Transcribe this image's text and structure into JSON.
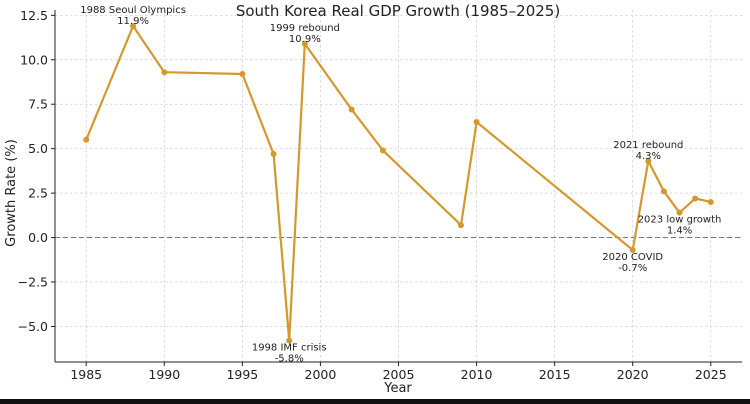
{
  "chart_data": {
    "type": "line",
    "title": "South Korea Real GDP Growth (1985–2025)",
    "xlabel": "Year",
    "ylabel": "Growth Rate (%)",
    "xlim": [
      1983,
      2027
    ],
    "ylim": [
      -7,
      12.8
    ],
    "xticks": [
      1985,
      1990,
      1995,
      2000,
      2005,
      2010,
      2015,
      2020,
      2025
    ],
    "yticks": [
      -5.0,
      -2.5,
      0.0,
      2.5,
      5.0,
      7.5,
      10.0,
      12.5
    ],
    "ytick_labels": [
      "−5.0",
      "−2.5",
      "0.0",
      "2.5",
      "5.0",
      "7.5",
      "10.0",
      "12.5"
    ],
    "grid": true,
    "zero_line": true,
    "series": [
      {
        "name": "Real GDP Growth",
        "color": "#D4982E",
        "x": [
          1985,
          1988,
          1990,
          1995,
          1997,
          1998,
          1999,
          2002,
          2004,
          2009,
          2010,
          2020,
          2021,
          2022,
          2023,
          2024,
          2025
        ],
        "y": [
          5.5,
          11.9,
          9.3,
          9.2,
          4.7,
          -5.8,
          10.9,
          7.2,
          4.9,
          0.7,
          6.5,
          -0.7,
          4.3,
          2.6,
          1.4,
          2.2,
          2.0
        ]
      }
    ],
    "annotations": [
      {
        "x": 1988,
        "y": 11.9,
        "label": "1988 Seoul Olympics",
        "value": "11.9%",
        "position": "above"
      },
      {
        "x": 1999,
        "y": 10.9,
        "label": "1999 rebound",
        "value": "10.9%",
        "position": "above"
      },
      {
        "x": 1998,
        "y": -5.8,
        "label": "1998 IMF crisis",
        "value": "-5.8%",
        "position": "below"
      },
      {
        "x": 2021,
        "y": 4.3,
        "label": "2021 rebound",
        "value": "4.3%",
        "position": "above"
      },
      {
        "x": 2023,
        "y": 1.4,
        "label": "2023 low growth",
        "value": "1.4%",
        "position": "below"
      },
      {
        "x": 2020,
        "y": -0.7,
        "label": "2020 COVID",
        "value": "-0.7%",
        "position": "below"
      }
    ]
  }
}
